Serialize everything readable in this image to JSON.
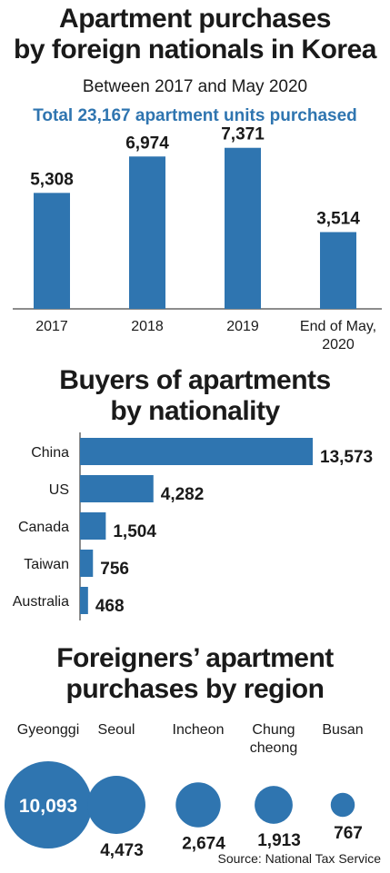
{
  "chart_data": [
    {
      "type": "bar",
      "title": "Apartment purchases by foreign nationals in Korea",
      "title_lines": [
        "Apartment purchases",
        "by foreign nationals in Korea"
      ],
      "subtitle": "Between 2017 and May 2020",
      "highlight": "Total 23,167 apartment units purchased",
      "categories": [
        [
          "2017"
        ],
        [
          "2018"
        ],
        [
          "2019"
        ],
        [
          "End of May,",
          "2020"
        ]
      ],
      "values": [
        5308,
        6974,
        7371,
        3514
      ],
      "value_labels": [
        "5,308",
        "6,974",
        "7,371",
        "3,514"
      ],
      "ylim": [
        0,
        7900
      ],
      "bar_color": "#2f75b0"
    },
    {
      "type": "bar",
      "orientation": "horizontal",
      "title": "Buyers of apartments by nationality",
      "title_lines": [
        "Buyers of apartments",
        "by nationality"
      ],
      "categories": [
        "China",
        "US",
        "Canada",
        "Taiwan",
        "Australia"
      ],
      "values": [
        13573,
        4282,
        1504,
        756,
        468
      ],
      "value_labels": [
        "13,573",
        "4,282",
        "1,504",
        "756",
        "468"
      ],
      "bar_color": "#2f75b0"
    },
    {
      "type": "bubble",
      "title": "Foreigners’ apartment purchases by region",
      "title_lines": [
        "Foreigners’ apartment",
        "purchases by region"
      ],
      "categories": [
        [
          "Gyeonggi"
        ],
        [
          "Seoul"
        ],
        [
          "Incheon"
        ],
        [
          "Chung",
          "cheong"
        ],
        [
          "Busan"
        ]
      ],
      "values": [
        10093,
        4473,
        2674,
        1913,
        767
      ],
      "value_labels": [
        "10,093",
        "4,473",
        "2,674",
        "1,913",
        "767"
      ],
      "bubble_color": "#2f75b0"
    }
  ],
  "source": "Source: National Tax Service"
}
